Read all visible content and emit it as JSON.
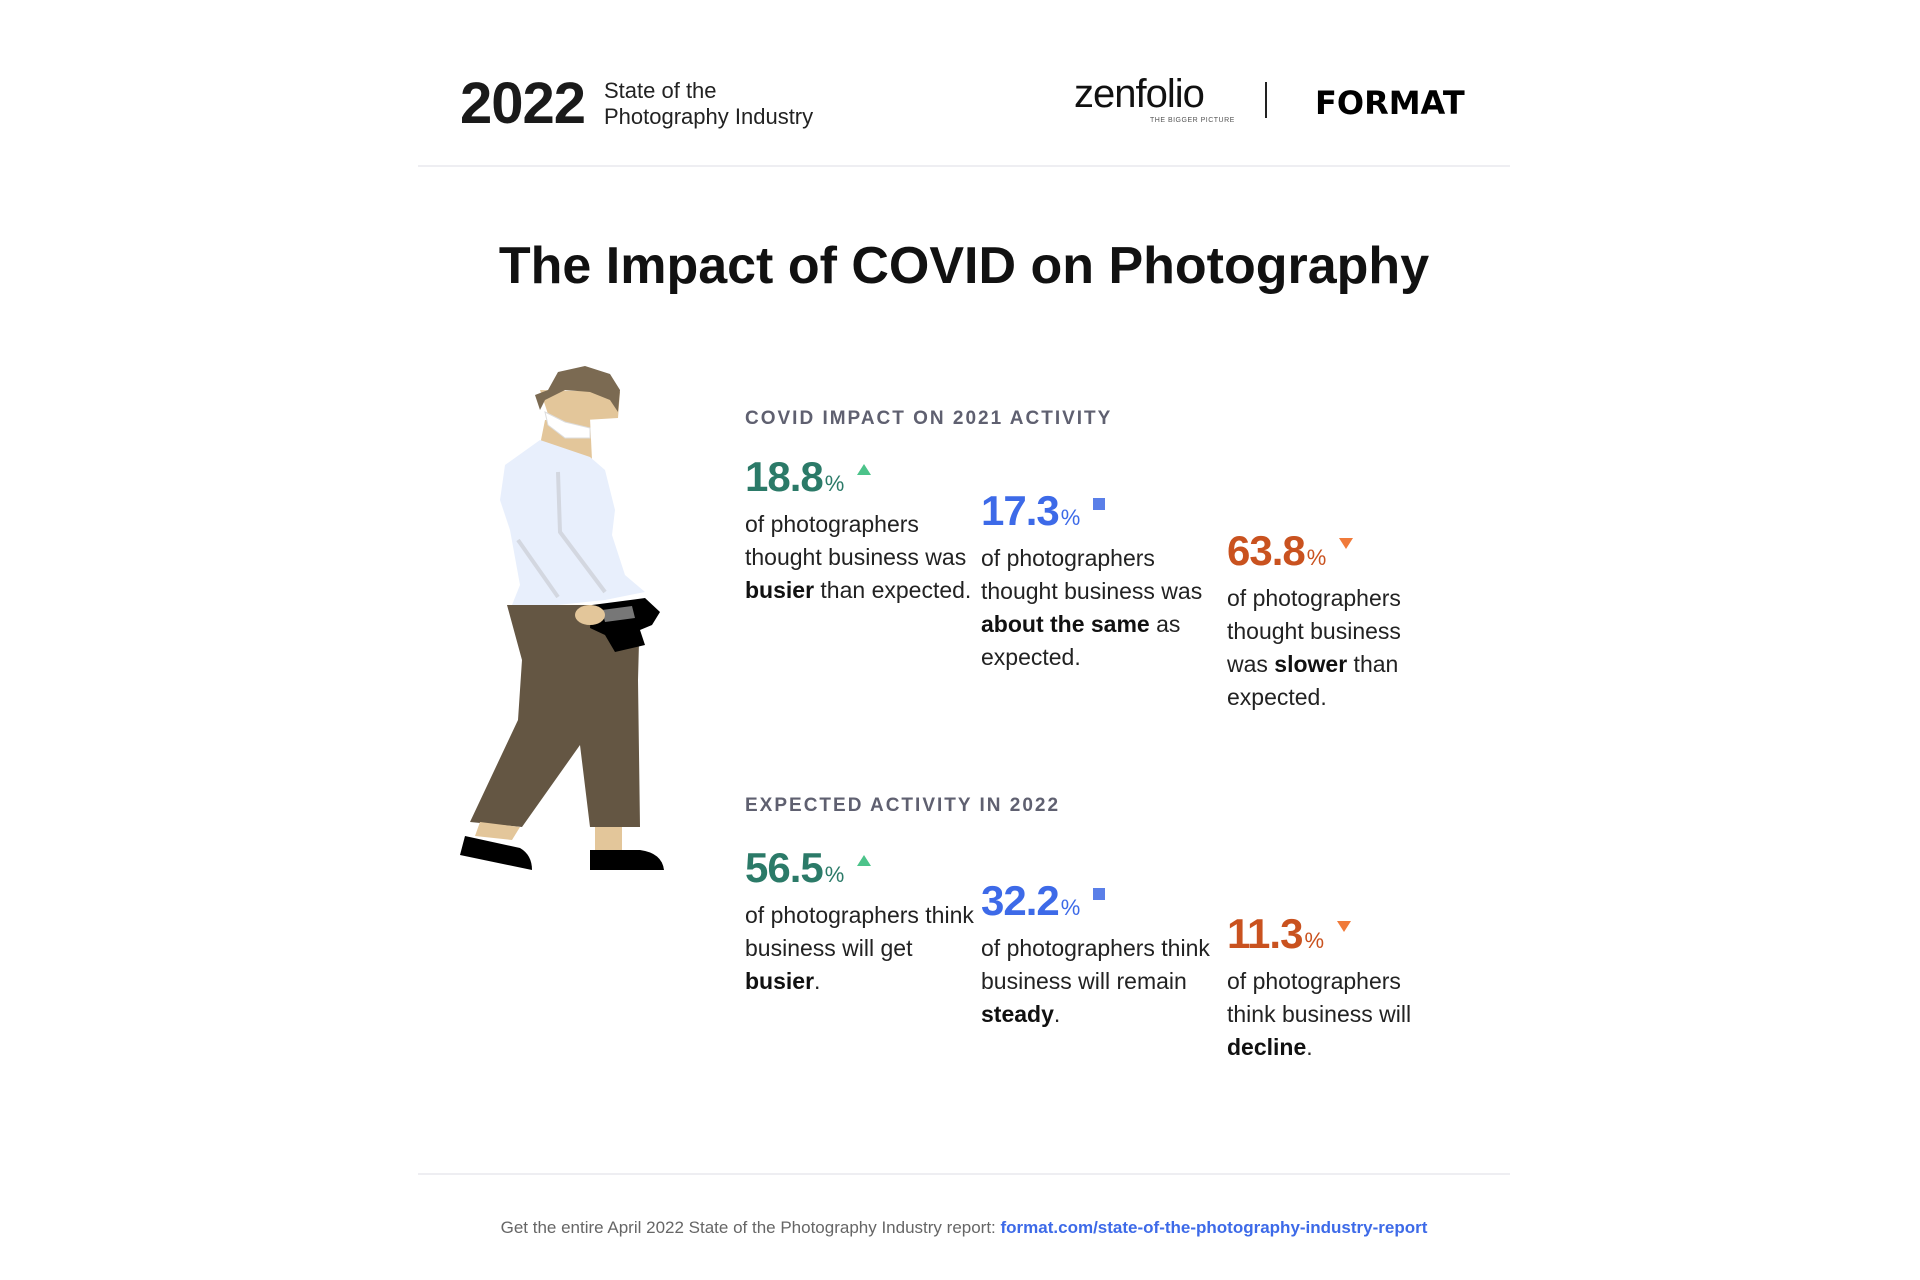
{
  "header": {
    "year": "2022",
    "subtitle_line1": "State of the",
    "subtitle_line2": "Photography Industry",
    "logo_zenfolio": "zenfolio",
    "logo_zenfolio_tagline": "THE BIGGER PICTURE",
    "logo_format": "FORMAT"
  },
  "title": "The Impact of COVID on Photography",
  "sections": [
    {
      "heading": "COVID IMPACT ON 2021 ACTIVITY",
      "stats": [
        {
          "value": "18.8",
          "unit": "%",
          "indicator": "up-triangle",
          "pre": "of photographers thought business was ",
          "bold": "busier",
          "post": " than expected."
        },
        {
          "value": "17.3",
          "unit": "%",
          "indicator": "square",
          "pre": "of photographers thought business was ",
          "bold": "about the same",
          "post": " as expected."
        },
        {
          "value": "63.8",
          "unit": "%",
          "indicator": "down-triangle",
          "pre": "of photographers thought business was ",
          "bold": "slower",
          "post": " than expected."
        }
      ]
    },
    {
      "heading": "EXPECTED ACTIVITY IN 2022",
      "stats": [
        {
          "value": "56.5",
          "unit": "%",
          "indicator": "up-triangle",
          "pre": "of photographers think business will get ",
          "bold": "busier",
          "post": "."
        },
        {
          "value": "32.2",
          "unit": "%",
          "indicator": "square",
          "pre": "of photographers think business will remain ",
          "bold": "steady",
          "post": "."
        },
        {
          "value": "11.3",
          "unit": "%",
          "indicator": "down-triangle",
          "pre": "of photographers think business will ",
          "bold": "decline",
          "post": "."
        }
      ]
    }
  ],
  "colors": {
    "up": "#2b7a68",
    "same": "#3d6ae8",
    "down": "#c9521f"
  },
  "footer": {
    "text": "Get the entire April 2022 State of the Photography Industry report: ",
    "link": "format.com/state-of-the-photography-industry-report"
  }
}
